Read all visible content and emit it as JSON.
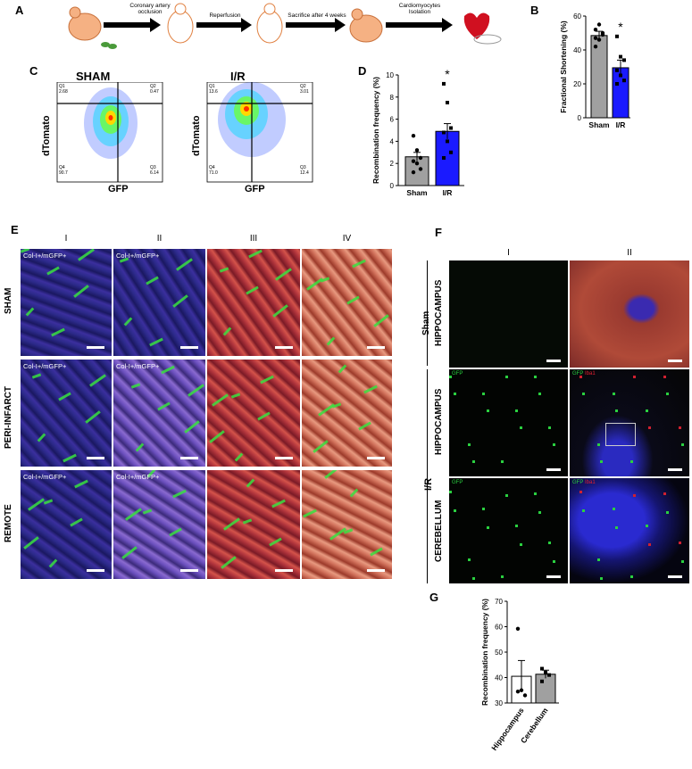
{
  "panels": {
    "A": "A",
    "B": "B",
    "C": "C",
    "D": "D",
    "E": "E",
    "F": "F",
    "G": "G"
  },
  "schematic": {
    "steps": [
      "Coronary artery occlusion",
      "Reperfusion",
      "Sacrifice after 4 weeks",
      "Cardiomyocytes Isolation"
    ]
  },
  "flow": {
    "sham_title": "SHAM",
    "ir_title": "I/R",
    "ylabel": "dTomato",
    "xlabel": "GFP",
    "sham_quadrants": {
      "q1": "Q1",
      "q1v": "2.68",
      "q2": "Q2",
      "q2v": "0.47",
      "q3": "Q3",
      "q3v": "6.14",
      "q4": "Q4",
      "q4v": "90.7"
    },
    "ir_quadrants": {
      "q1": "Q1",
      "q1v": "13.6",
      "q2": "Q2",
      "q2v": "3.01",
      "q3": "Q3",
      "q3v": "12.4",
      "q4": "Q4",
      "q4v": "71.0"
    }
  },
  "chart_data": [
    {
      "panel": "B",
      "type": "bar",
      "categories": [
        "Sham",
        "I/R"
      ],
      "values": [
        48.5,
        29.5
      ],
      "errors": [
        2.5,
        4.5
      ],
      "points": [
        [
          52,
          55,
          49,
          47,
          46,
          50,
          42
        ],
        [
          48,
          36,
          34,
          28,
          25,
          22,
          20
        ]
      ],
      "ylabel": "Fractional Shortening (%)",
      "ylim": [
        0,
        60
      ],
      "yticks": [
        "0",
        "20",
        "40",
        "60"
      ],
      "annotation": "*",
      "colors": [
        "#a0a0a0",
        "#1a1aff"
      ]
    },
    {
      "panel": "D",
      "type": "bar",
      "categories": [
        "Sham",
        "I/R"
      ],
      "values": [
        2.6,
        4.9
      ],
      "errors": [
        0.4,
        0.7
      ],
      "points": [
        [
          4.5,
          3.2,
          2.5,
          2.2,
          2.0,
          1.5,
          1.2
        ],
        [
          9.2,
          7.5,
          5.2,
          4.8,
          4.0,
          3.0,
          2.5
        ]
      ],
      "ylabel": "Recombination frequency (%)",
      "ylim": [
        0,
        10
      ],
      "yticks": [
        "0",
        "2",
        "4",
        "6",
        "8",
        "10"
      ],
      "annotation": "*",
      "colors": [
        "#a0a0a0",
        "#1a1aff"
      ]
    },
    {
      "panel": "G",
      "type": "bar",
      "categories": [
        "Hippocampus",
        "Cerebellum"
      ],
      "values": [
        40.5,
        41.3
      ],
      "errors": [
        6.2,
        1.6
      ],
      "points": [
        [
          59.2,
          35.0,
          33.0,
          34.5
        ],
        [
          43.5,
          42.0,
          41.0,
          38.5
        ]
      ],
      "ylabel": "Recombination frequency (%)",
      "ylim": [
        30,
        70
      ],
      "yticks": [
        "30",
        "40",
        "50",
        "60",
        "70"
      ],
      "colors": [
        "#ffffff",
        "#a0a0a0"
      ]
    }
  ],
  "micro": {
    "cols": [
      "I",
      "II",
      "III",
      "IV"
    ],
    "rows": [
      "SHAM",
      "PERI-INFARCT",
      "REMOTE"
    ],
    "tile_label": "Col-I+/mGFP+"
  },
  "brain": {
    "cols": [
      "I",
      "II"
    ],
    "sham": "Sham",
    "ir": "I/R",
    "hippocampus": "HIPPOCAMPUS",
    "cerebellum": "CEREBELLUM",
    "gfp": "GFP",
    "iba1": "Iba1"
  }
}
